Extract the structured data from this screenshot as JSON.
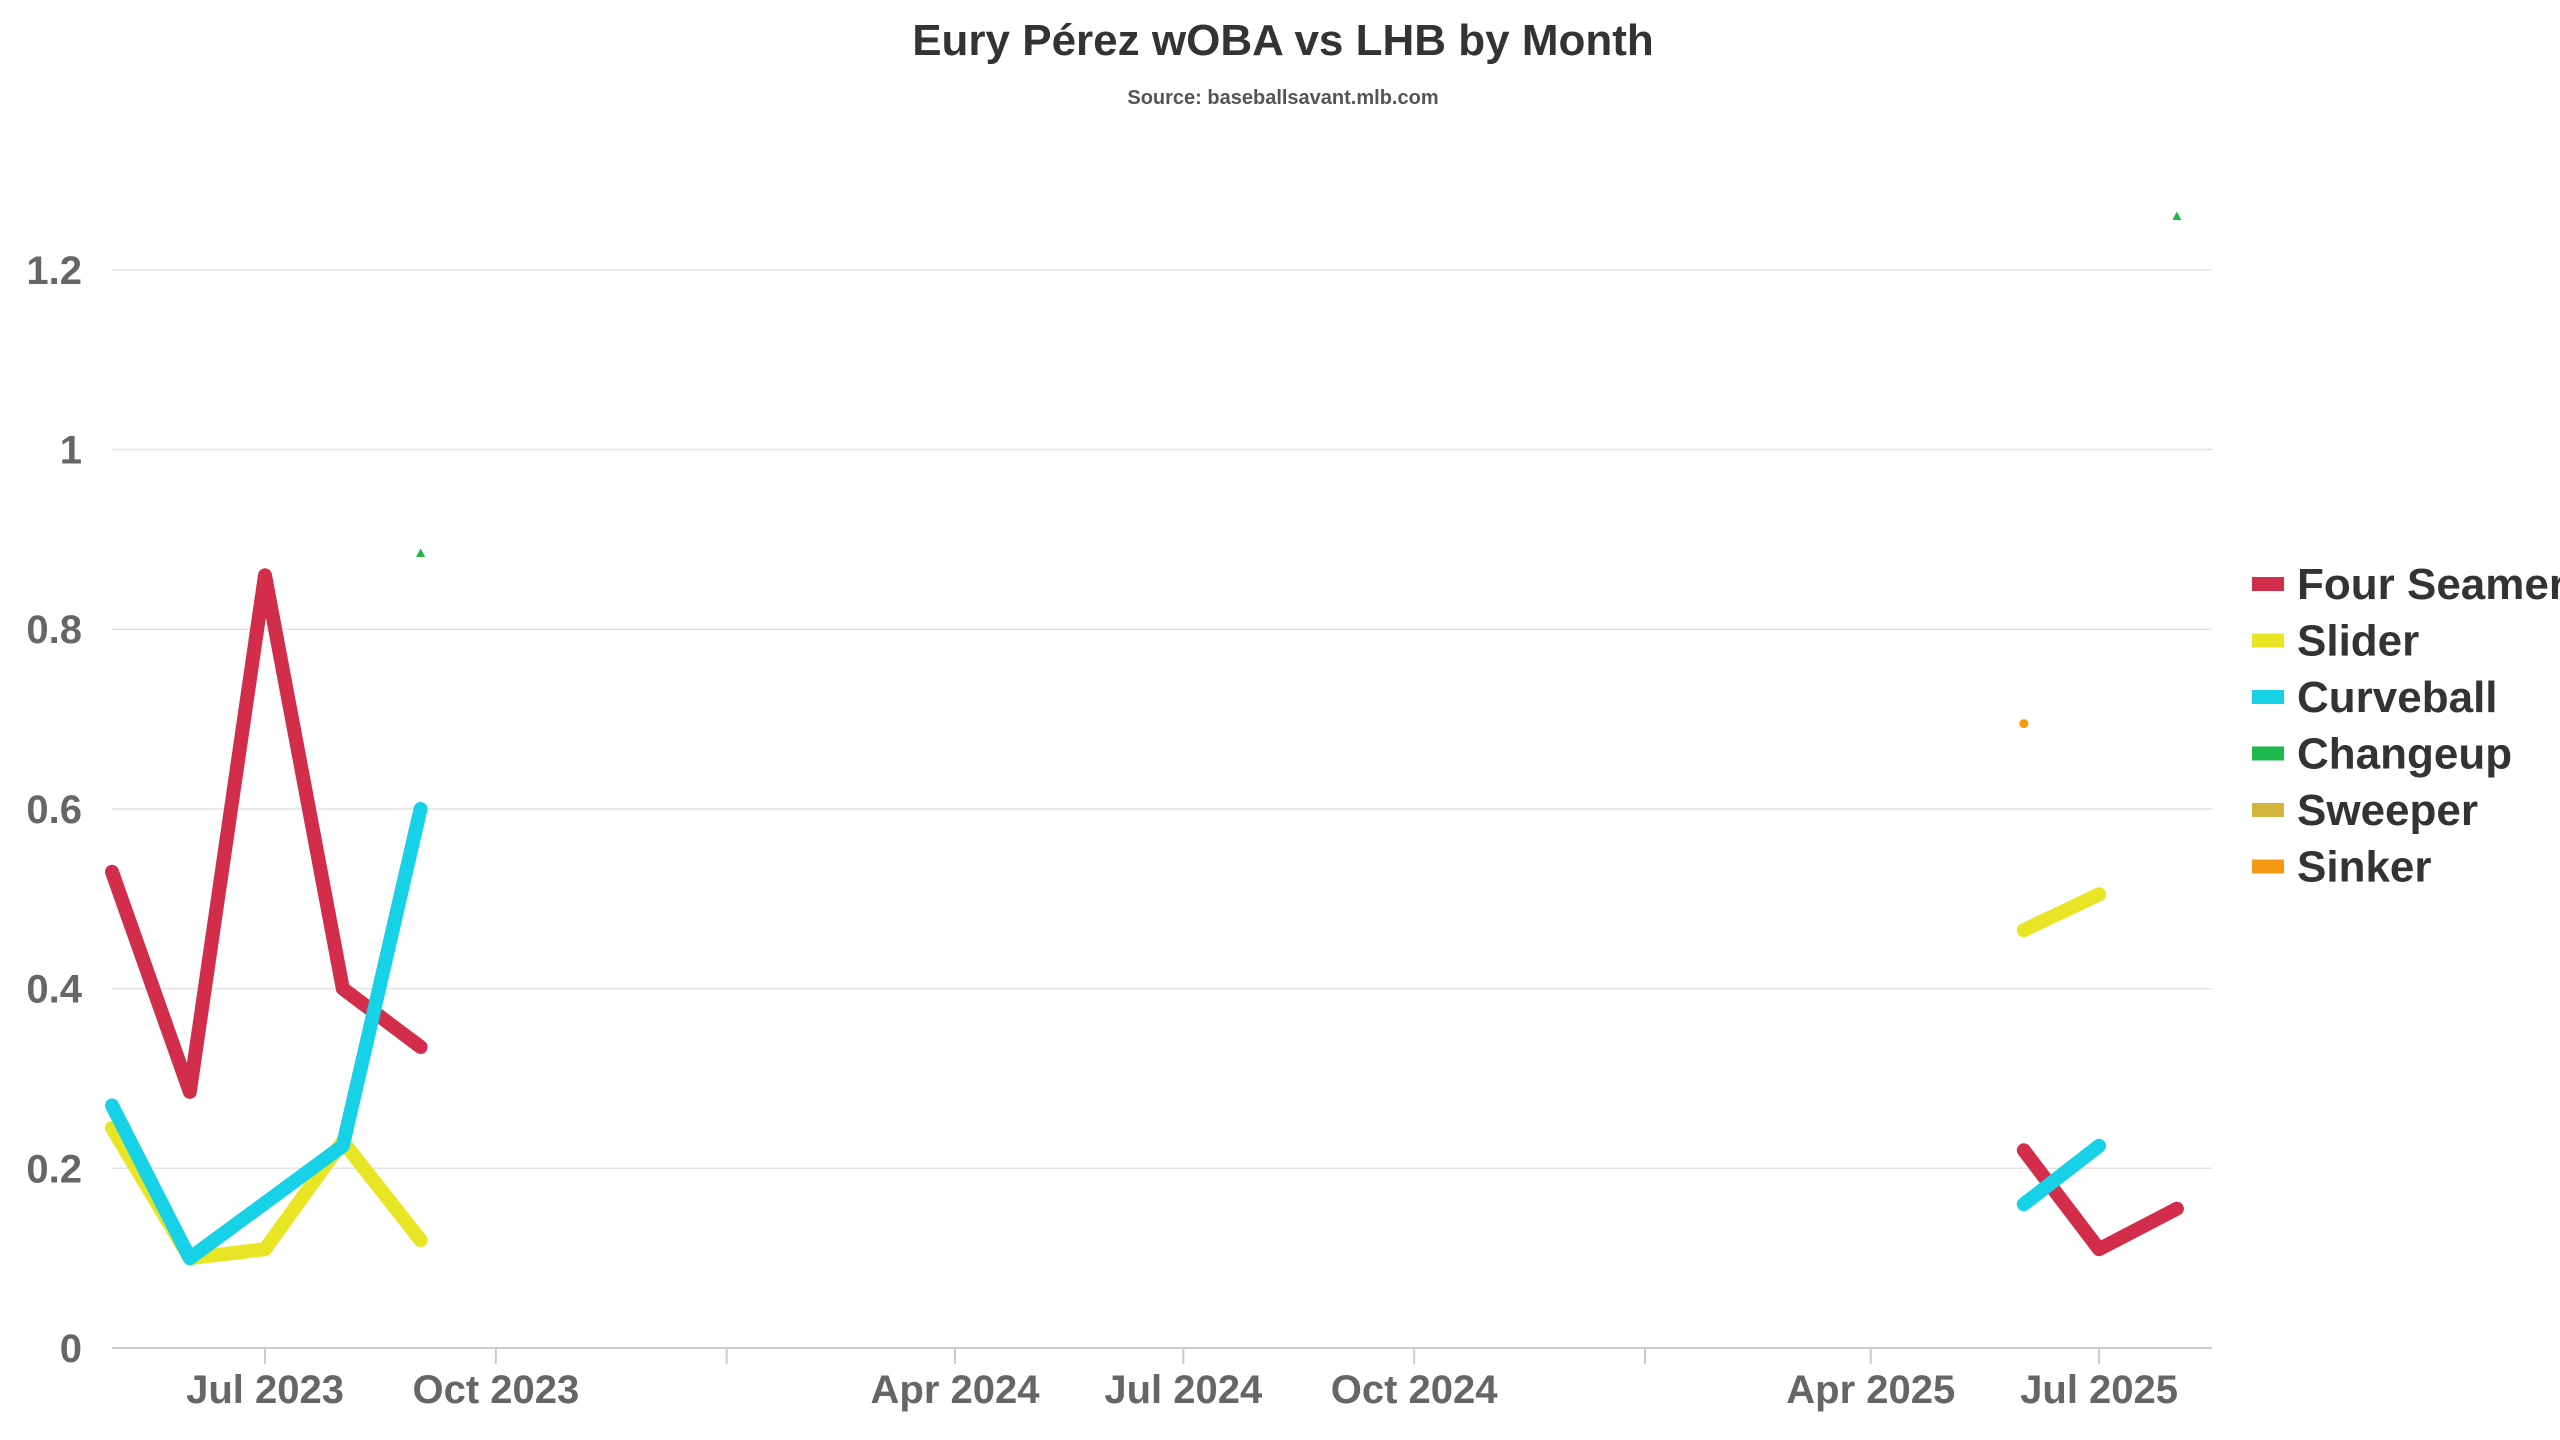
{
  "chart_data": {
    "type": "line",
    "title": "Eury Pérez wOBA vs LHB by Month",
    "subtitle": "Source: baseballsavant.mlb.com",
    "xlabel": "",
    "ylabel": "",
    "x_range": [
      "2023-05-01",
      "2025-08-15"
    ],
    "ylim": [
      0,
      1.3
    ],
    "y_ticks": [
      {
        "value": 0,
        "label": "0"
      },
      {
        "value": 0.2,
        "label": "0.2"
      },
      {
        "value": 0.4,
        "label": "0.4"
      },
      {
        "value": 0.6,
        "label": "0.6"
      },
      {
        "value": 0.8,
        "label": "0.8"
      },
      {
        "value": 1,
        "label": "1"
      },
      {
        "value": 1.2,
        "label": "1.2"
      }
    ],
    "x_ticks": [
      {
        "date": "2023-07-01",
        "label": "Jul 2023"
      },
      {
        "date": "2023-10-01",
        "label": "Oct 2023"
      },
      {
        "date": "2024-01-01",
        "label": ""
      },
      {
        "date": "2024-04-01",
        "label": "Apr 2024"
      },
      {
        "date": "2024-07-01",
        "label": "Jul 2024"
      },
      {
        "date": "2024-10-01",
        "label": "Oct 2024"
      },
      {
        "date": "2025-01-01",
        "label": ""
      },
      {
        "date": "2025-04-01",
        "label": "Apr 2025"
      },
      {
        "date": "2025-07-01",
        "label": "Jul 2025"
      }
    ],
    "grid": true,
    "legend_position": "right",
    "series": [
      {
        "name": "Four Seamer",
        "color": "#d22d4b",
        "points": [
          {
            "x": "2023-05-01",
            "y": 0.53
          },
          {
            "x": "2023-06-01",
            "y": 0.285
          },
          {
            "x": "2023-07-01",
            "y": 0.86
          },
          {
            "x": "2023-08-01",
            "y": 0.4
          },
          {
            "x": "2023-09-01",
            "y": 0.335
          },
          {
            "x": "2025-06-01",
            "y": 0.22
          },
          {
            "x": "2025-07-01",
            "y": 0.11
          },
          {
            "x": "2025-08-01",
            "y": 0.155
          }
        ]
      },
      {
        "name": "Slider",
        "color": "#e8e624",
        "points": [
          {
            "x": "2023-05-01",
            "y": 0.245
          },
          {
            "x": "2023-06-01",
            "y": 0.1
          },
          {
            "x": "2023-07-01",
            "y": 0.11
          },
          {
            "x": "2023-08-01",
            "y": 0.23
          },
          {
            "x": "2023-09-01",
            "y": 0.12
          },
          {
            "x": "2025-06-01",
            "y": 0.465
          },
          {
            "x": "2025-07-01",
            "y": 0.505
          }
        ]
      },
      {
        "name": "Curveball",
        "color": "#17d2e6",
        "points": [
          {
            "x": "2023-05-01",
            "y": 0.27
          },
          {
            "x": "2023-06-01",
            "y": 0.1
          },
          {
            "x": "2023-08-01",
            "y": 0.225
          },
          {
            "x": "2023-09-01",
            "y": 0.6
          },
          {
            "x": "2025-06-01",
            "y": 0.16
          },
          {
            "x": "2025-07-01",
            "y": 0.225
          }
        ]
      },
      {
        "name": "Changeup",
        "color": "#1fb84a",
        "points": [
          {
            "x": "2023-09-01",
            "y": 0.885
          },
          {
            "x": "2025-08-01",
            "y": 1.26
          }
        ]
      },
      {
        "name": "Sweeper",
        "color": "#d4b43c",
        "points": []
      },
      {
        "name": "Sinker",
        "color": "#f59a12",
        "points": [
          {
            "x": "2025-06-01",
            "y": 0.695
          }
        ]
      }
    ]
  }
}
